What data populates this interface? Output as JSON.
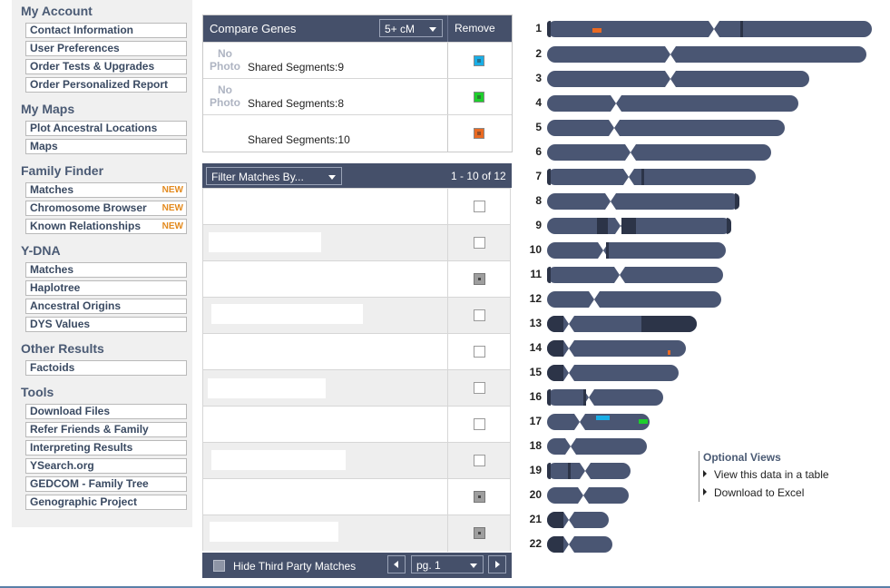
{
  "sidebar": {
    "sections": [
      {
        "title": "My Account",
        "items": [
          {
            "label": "Contact Information",
            "badge": ""
          },
          {
            "label": "User Preferences",
            "badge": ""
          },
          {
            "label": "Order Tests & Upgrades",
            "badge": ""
          },
          {
            "label": "Order Personalized Report",
            "badge": ""
          }
        ]
      },
      {
        "title": "My Maps",
        "items": [
          {
            "label": "Plot Ancestral Locations",
            "badge": ""
          },
          {
            "label": "Maps",
            "badge": ""
          }
        ]
      },
      {
        "title": "Family Finder",
        "items": [
          {
            "label": "Matches",
            "badge": "NEW"
          },
          {
            "label": "Chromosome Browser",
            "badge": "NEW"
          },
          {
            "label": "Known Relationships",
            "badge": "NEW"
          }
        ]
      },
      {
        "title": "Y-DNA",
        "items": [
          {
            "label": "Matches",
            "badge": ""
          },
          {
            "label": "Haplotree",
            "badge": ""
          },
          {
            "label": "Ancestral Origins",
            "badge": ""
          },
          {
            "label": "DYS Values",
            "badge": ""
          }
        ]
      },
      {
        "title": "Other Results",
        "items": [
          {
            "label": "Factoids",
            "badge": ""
          }
        ]
      },
      {
        "title": "Tools",
        "items": [
          {
            "label": "Download Files",
            "badge": ""
          },
          {
            "label": "Refer Friends & Family",
            "badge": ""
          },
          {
            "label": "Interpreting Results",
            "badge": ""
          },
          {
            "label": "YSearch.org",
            "badge": ""
          },
          {
            "label": "GEDCOM - Family Tree",
            "badge": ""
          },
          {
            "label": "Genographic Project",
            "badge": ""
          }
        ]
      }
    ]
  },
  "compare": {
    "title": "Compare Genes",
    "threshold": "5+ cM",
    "remove_label": "Remove",
    "rows": [
      {
        "photo": "No Photo",
        "shared": "Shared Segments:9",
        "color": "#19aee6"
      },
      {
        "photo": "No Photo",
        "shared": "Shared Segments:8",
        "color": "#1ecf2c"
      },
      {
        "photo": "",
        "shared": "Shared Segments:10",
        "color": "#ea6a22"
      }
    ]
  },
  "matches": {
    "filter_label": "Filter Matches By...",
    "range": "1 - 10 of 12",
    "rows": [
      {
        "checked": false
      },
      {
        "checked": false
      },
      {
        "checked": true
      },
      {
        "checked": false
      },
      {
        "checked": false
      },
      {
        "checked": false
      },
      {
        "checked": false
      },
      {
        "checked": false
      },
      {
        "checked": true
      },
      {
        "checked": true
      }
    ],
    "hide_third_party": "Hide Third Party Matches",
    "page": "pg. 1"
  },
  "chromosomes": {
    "labels": [
      "1",
      "2",
      "3",
      "4",
      "5",
      "6",
      "7",
      "8",
      "9",
      "10",
      "11",
      "12",
      "13",
      "14",
      "15",
      "16",
      "17",
      "18",
      "19",
      "20",
      "21",
      "22"
    ],
    "segment_colors": {
      "blue": "#19aee6",
      "green": "#1ecf2c",
      "orange": "#ea6a22"
    }
  },
  "optional_views": {
    "title": "Optional Views",
    "links": [
      "View this data in a table",
      "Download to Excel"
    ]
  }
}
